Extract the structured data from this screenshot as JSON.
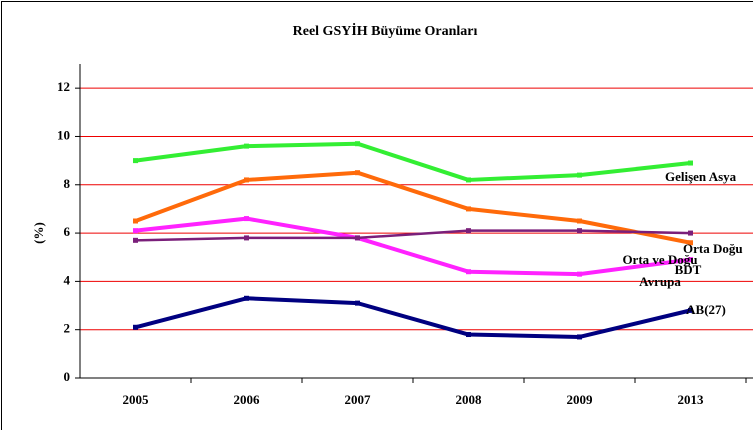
{
  "chart_data": {
    "type": "line",
    "title": "Reel GSYİH Büyüme Oranları",
    "ylabel": "(%)",
    "categories": [
      "2005",
      "2006",
      "2007",
      "2008",
      "2009",
      "2013"
    ],
    "series": [
      {
        "name": "Gelişen Asya",
        "color": "#33ee33",
        "values": [
          9.0,
          9.6,
          9.7,
          8.2,
          8.4,
          8.9
        ]
      },
      {
        "name": "BDT",
        "color": "#ff6a0a",
        "values": [
          6.5,
          8.2,
          8.5,
          7.0,
          6.5,
          5.6
        ]
      },
      {
        "name": "Orta ve Doğu Avrupa",
        "color": "#ff22ff",
        "values": [
          6.1,
          6.6,
          5.8,
          4.4,
          4.3,
          4.9
        ]
      },
      {
        "name": "Orta Doğu",
        "color": "#7a1f7a",
        "values": [
          5.7,
          5.8,
          5.8,
          6.1,
          6.1,
          6.0
        ]
      },
      {
        "name": "AB(27)",
        "color": "#000080",
        "values": [
          2.1,
          3.3,
          3.1,
          1.8,
          1.7,
          2.8
        ]
      }
    ],
    "ylim": [
      0,
      13
    ],
    "yticks": [
      0,
      2,
      4,
      6,
      8,
      10,
      12
    ],
    "grid": true
  }
}
